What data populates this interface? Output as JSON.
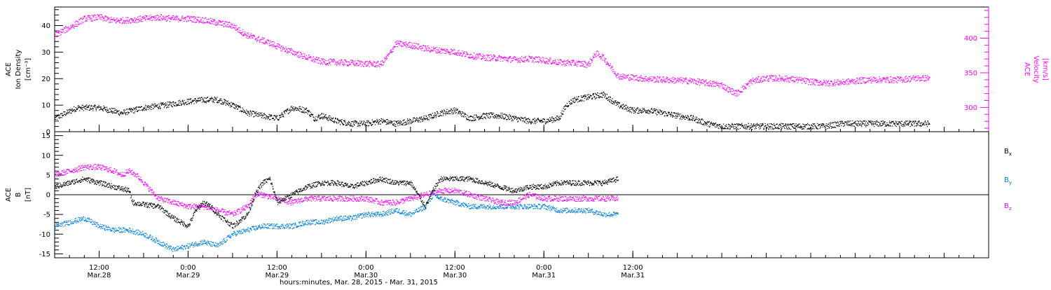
{
  "chart_data": [
    {
      "type": "scatter",
      "panel": "top",
      "ylabel_left": [
        "ACE",
        "Ion Density",
        "[cm⁻³]"
      ],
      "ylabel_right": [
        "ACE",
        "Velocity",
        "[km/s]"
      ],
      "ylim_left": [
        0,
        47
      ],
      "ylim_right": [
        265,
        445
      ],
      "yticks_left": [
        0,
        10,
        20,
        30,
        40
      ],
      "yticks_right": [
        300,
        350,
        400
      ],
      "series": [
        {
          "axis": "left",
          "color": "#000000",
          "points": [
            [
              6,
              5
            ],
            [
              9,
              9
            ],
            [
              12,
              9
            ],
            [
              15,
              7
            ],
            [
              18,
              9
            ],
            [
              21,
              10
            ],
            [
              23,
              11
            ],
            [
              26,
              12
            ],
            [
              28,
              12
            ],
            [
              30,
              10
            ],
            [
              32,
              7
            ],
            [
              34,
              6
            ],
            [
              36,
              5
            ],
            [
              37,
              7
            ],
            [
              38,
              9
            ],
            [
              40,
              8
            ],
            [
              41,
              5
            ],
            [
              42,
              6
            ],
            [
              44,
              4
            ],
            [
              46,
              3
            ],
            [
              48,
              3
            ],
            [
              50,
              4
            ],
            [
              52,
              3
            ],
            [
              54,
              4
            ],
            [
              56,
              5
            ],
            [
              58,
              7
            ],
            [
              60,
              8
            ],
            [
              62,
              5
            ],
            [
              64,
              6
            ],
            [
              66,
              6
            ],
            [
              68,
              5
            ],
            [
              70,
              4
            ],
            [
              72,
              4
            ],
            [
              74,
              5
            ],
            [
              75,
              10
            ],
            [
              76,
              12
            ],
            [
              78,
              13
            ],
            [
              80,
              14
            ],
            [
              81,
              12
            ],
            [
              82,
              10
            ],
            [
              84,
              8
            ],
            [
              86,
              8
            ],
            [
              88,
              7
            ],
            [
              90,
              6
            ],
            [
              92,
              5
            ],
            [
              94,
              3
            ],
            [
              96,
              2
            ],
            [
              98,
              2
            ],
            [
              100,
              2
            ],
            [
              102,
              2
            ],
            [
              104,
              2
            ],
            [
              106,
              2
            ],
            [
              108,
              2
            ],
            [
              110,
              2
            ],
            [
              112,
              3
            ],
            [
              114,
              3
            ],
            [
              116,
              3
            ],
            [
              118,
              3
            ],
            [
              120,
              3
            ],
            [
              122,
              3
            ],
            [
              124,
              3
            ]
          ]
        },
        {
          "axis": "right",
          "color": "#ff00ff",
          "points": [
            [
              6,
              405
            ],
            [
              8,
              415
            ],
            [
              10,
              428
            ],
            [
              12,
              430
            ],
            [
              14,
              425
            ],
            [
              16,
              426
            ],
            [
              18,
              428
            ],
            [
              20,
              430
            ],
            [
              22,
              428
            ],
            [
              24,
              428
            ],
            [
              26,
              426
            ],
            [
              28,
              422
            ],
            [
              30,
              418
            ],
            [
              31,
              410
            ],
            [
              32,
              404
            ],
            [
              33,
              400
            ],
            [
              35,
              393
            ],
            [
              36,
              388
            ],
            [
              38,
              380
            ],
            [
              40,
              372
            ],
            [
              42,
              366
            ],
            [
              44,
              365
            ],
            [
              46,
              364
            ],
            [
              48,
              363
            ],
            [
              50,
              362
            ],
            [
              51,
              375
            ],
            [
              52,
              392
            ],
            [
              54,
              390
            ],
            [
              56,
              385
            ],
            [
              58,
              382
            ],
            [
              60,
              380
            ],
            [
              62,
              375
            ],
            [
              64,
              372
            ],
            [
              66,
              371
            ],
            [
              68,
              369
            ],
            [
              70,
              370
            ],
            [
              72,
              368
            ],
            [
              74,
              365
            ],
            [
              76,
              364
            ],
            [
              78,
              362
            ],
            [
              79,
              378
            ],
            [
              80,
              372
            ],
            [
              81,
              358
            ],
            [
              82,
              345
            ],
            [
              84,
              343
            ],
            [
              86,
              341
            ],
            [
              88,
              340
            ],
            [
              90,
              339
            ],
            [
              92,
              338
            ],
            [
              94,
              335
            ],
            [
              96,
              332
            ],
            [
              97,
              325
            ],
            [
              98,
              320
            ],
            [
              100,
              338
            ],
            [
              102,
              342
            ],
            [
              104,
              342
            ],
            [
              106,
              340
            ],
            [
              108,
              337
            ],
            [
              110,
              335
            ],
            [
              112,
              336
            ],
            [
              114,
              338
            ],
            [
              116,
              340
            ],
            [
              118,
              340
            ],
            [
              120,
              340
            ],
            [
              122,
              342
            ],
            [
              124,
              342
            ]
          ]
        }
      ]
    },
    {
      "type": "scatter",
      "panel": "bottom",
      "ylabel_left": [
        "ACE",
        "B",
        "[nT]"
      ],
      "ylim": [
        -16,
        16
      ],
      "yticks": [
        -15,
        -10,
        -5,
        0,
        5,
        10,
        15
      ],
      "zero_line": true,
      "x_hours": [
        6,
        124
      ],
      "xlim_hours": [
        6,
        132
      ],
      "xticks": [
        {
          "hour": 12,
          "line1": "12:00",
          "line2": "Mar.28"
        },
        {
          "hour": 24,
          "line1": "0:00",
          "line2": "Mar.29"
        },
        {
          "hour": 36,
          "line1": "12:00",
          "line2": "Mar.29"
        },
        {
          "hour": 48,
          "line1": "0:00",
          "line2": "Mar.30"
        },
        {
          "hour": 60,
          "line1": "12:00",
          "line2": "Mar.30"
        },
        {
          "hour": 72,
          "line1": "0:00",
          "line2": "Mar.31"
        },
        {
          "hour": 84,
          "line1": "12:00",
          "line2": "Mar.31"
        }
      ],
      "xlabel": "hours:minutes, Mar. 28, 2015 - Mar. 31, 2015",
      "series": [
        {
          "name": "Bx",
          "color": "#000000",
          "points": [
            [
              6,
              2
            ],
            [
              8,
              3
            ],
            [
              10,
              4
            ],
            [
              12,
              3
            ],
            [
              14,
              2
            ],
            [
              16,
              1
            ],
            [
              16.5,
              -2
            ],
            [
              18,
              -2.5
            ],
            [
              20,
              -3
            ],
            [
              22,
              -6
            ],
            [
              24,
              -8
            ],
            [
              25,
              -4
            ],
            [
              26,
              -2
            ],
            [
              27,
              -3
            ],
            [
              28,
              -5
            ],
            [
              30,
              -8
            ],
            [
              32,
              -5
            ],
            [
              33,
              0
            ],
            [
              34,
              3
            ],
            [
              35,
              4
            ],
            [
              36,
              -2
            ],
            [
              38,
              0
            ],
            [
              40,
              2
            ],
            [
              42,
              3
            ],
            [
              44,
              3
            ],
            [
              46,
              2
            ],
            [
              48,
              3
            ],
            [
              50,
              4
            ],
            [
              52,
              3
            ],
            [
              54,
              3
            ],
            [
              55,
              0
            ],
            [
              56,
              -3
            ],
            [
              57,
              1
            ],
            [
              58,
              4
            ],
            [
              60,
              4
            ],
            [
              62,
              4
            ],
            [
              64,
              3
            ],
            [
              66,
              2
            ],
            [
              68,
              1
            ],
            [
              70,
              2
            ],
            [
              72,
              2
            ],
            [
              74,
              3
            ],
            [
              76,
              3
            ],
            [
              78,
              3
            ],
            [
              80,
              3
            ],
            [
              82,
              4
            ]
          ]
        },
        {
          "name": "By",
          "color": "#0080e0",
          "points": [
            [
              6,
              -8
            ],
            [
              8,
              -7
            ],
            [
              10,
              -6
            ],
            [
              12,
              -8
            ],
            [
              14,
              -9
            ],
            [
              16,
              -9
            ],
            [
              18,
              -10
            ],
            [
              20,
              -12
            ],
            [
              22,
              -14
            ],
            [
              24,
              -13
            ],
            [
              26,
              -12
            ],
            [
              28,
              -13
            ],
            [
              30,
              -10
            ],
            [
              32,
              -9
            ],
            [
              34,
              -8
            ],
            [
              36,
              -8
            ],
            [
              38,
              -8
            ],
            [
              40,
              -7
            ],
            [
              42,
              -7
            ],
            [
              44,
              -6
            ],
            [
              46,
              -6
            ],
            [
              48,
              -5
            ],
            [
              50,
              -5
            ],
            [
              52,
              -4
            ],
            [
              54,
              -5
            ],
            [
              56,
              -3
            ],
            [
              57,
              0
            ],
            [
              58,
              -1
            ],
            [
              60,
              -2
            ],
            [
              62,
              -3
            ],
            [
              64,
              -3
            ],
            [
              66,
              -3
            ],
            [
              68,
              -3
            ],
            [
              70,
              -3
            ],
            [
              72,
              -3
            ],
            [
              74,
              -4
            ],
            [
              76,
              -4
            ],
            [
              78,
              -4
            ],
            [
              80,
              -5
            ],
            [
              82,
              -5
            ]
          ]
        },
        {
          "name": "Bz",
          "color": "#ff00ff",
          "points": [
            [
              6,
              5
            ],
            [
              8,
              6
            ],
            [
              10,
              7
            ],
            [
              12,
              7
            ],
            [
              14,
              6
            ],
            [
              15,
              5
            ],
            [
              16,
              6
            ],
            [
              17,
              5
            ],
            [
              18,
              3
            ],
            [
              20,
              -1
            ],
            [
              22,
              -2
            ],
            [
              24,
              -3
            ],
            [
              26,
              -3
            ],
            [
              28,
              -4
            ],
            [
              30,
              -5
            ],
            [
              32,
              -3
            ],
            [
              33,
              0
            ],
            [
              34,
              0
            ],
            [
              36,
              -1
            ],
            [
              38,
              -2
            ],
            [
              40,
              -1
            ],
            [
              42,
              -1
            ],
            [
              44,
              -1
            ],
            [
              46,
              -1
            ],
            [
              48,
              -1
            ],
            [
              50,
              -2
            ],
            [
              52,
              -2
            ],
            [
              54,
              -1
            ],
            [
              56,
              0
            ],
            [
              58,
              1
            ],
            [
              60,
              1
            ],
            [
              62,
              0
            ],
            [
              64,
              -1
            ],
            [
              66,
              -2
            ],
            [
              68,
              -2
            ],
            [
              70,
              0
            ],
            [
              72,
              -1
            ],
            [
              74,
              -1
            ],
            [
              76,
              -1
            ],
            [
              78,
              -1
            ],
            [
              80,
              -1
            ],
            [
              82,
              -1
            ]
          ]
        }
      ],
      "legend": [
        {
          "label": "Bx",
          "main": "B",
          "sub": "x",
          "color": "#000000"
        },
        {
          "label": "By",
          "main": "B",
          "sub": "y",
          "color": "#0080e0"
        },
        {
          "label": "Bz",
          "main": "B",
          "sub": "z",
          "color": "#ff00ff"
        }
      ],
      "legend_position": "right"
    }
  ]
}
